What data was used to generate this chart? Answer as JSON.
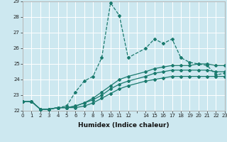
{
  "xlabel": "Humidex (Indice chaleur)",
  "bg_color": "#cde8f0",
  "grid_color": "#ffffff",
  "line_color": "#1a7a6e",
  "xlim": [
    0,
    23
  ],
  "ylim": [
    22.0,
    29.0
  ],
  "yticks": [
    22,
    23,
    24,
    25,
    26,
    27,
    28,
    29
  ],
  "xtick_positions": [
    0,
    1,
    2,
    3,
    4,
    5,
    6,
    7,
    8,
    9,
    10,
    11,
    12,
    13,
    14,
    15,
    16,
    17,
    18,
    19,
    20,
    21,
    22,
    23
  ],
  "xtick_labels": [
    "0",
    "1",
    "2",
    "3",
    "4",
    "5",
    "6",
    "7",
    "8",
    "9",
    "10",
    "11",
    "12",
    "",
    "14",
    "15",
    "16",
    "17",
    "18",
    "19",
    "20",
    "21",
    "22",
    "23"
  ],
  "series": [
    {
      "x": [
        0,
        1,
        2,
        3,
        4,
        5,
        6,
        7,
        8,
        9,
        10,
        11,
        12,
        14,
        15,
        16,
        17,
        18,
        19,
        20,
        21,
        22,
        23
      ],
      "y": [
        22.6,
        22.6,
        22.1,
        22.1,
        22.2,
        22.3,
        23.2,
        23.9,
        24.2,
        25.4,
        28.9,
        28.1,
        25.4,
        26.0,
        26.6,
        26.3,
        26.6,
        25.4,
        25.1,
        25.0,
        24.9,
        24.3,
        24.4
      ],
      "linestyle": "--"
    },
    {
      "x": [
        0,
        1,
        2,
        3,
        4,
        5,
        6,
        7,
        8,
        9,
        10,
        11,
        12,
        14,
        15,
        16,
        17,
        18,
        19,
        20,
        21,
        22,
        23
      ],
      "y": [
        22.6,
        22.6,
        22.1,
        22.1,
        22.2,
        22.2,
        22.3,
        22.5,
        22.8,
        23.2,
        23.6,
        24.0,
        24.2,
        24.5,
        24.7,
        24.8,
        24.9,
        24.9,
        24.9,
        25.0,
        25.0,
        24.9,
        24.9
      ],
      "linestyle": "-"
    },
    {
      "x": [
        0,
        1,
        2,
        3,
        4,
        5,
        6,
        7,
        8,
        9,
        10,
        11,
        12,
        14,
        15,
        16,
        17,
        18,
        19,
        20,
        21,
        22,
        23
      ],
      "y": [
        22.6,
        22.6,
        22.1,
        22.1,
        22.2,
        22.2,
        22.3,
        22.5,
        22.7,
        23.0,
        23.4,
        23.7,
        23.9,
        24.2,
        24.4,
        24.5,
        24.6,
        24.6,
        24.6,
        24.6,
        24.6,
        24.5,
        24.5
      ],
      "linestyle": "-"
    },
    {
      "x": [
        0,
        1,
        2,
        3,
        4,
        5,
        6,
        7,
        8,
        9,
        10,
        11,
        12,
        14,
        15,
        16,
        17,
        18,
        19,
        20,
        21,
        22,
        23
      ],
      "y": [
        22.6,
        22.6,
        22.1,
        22.1,
        22.2,
        22.2,
        22.2,
        22.3,
        22.5,
        22.8,
        23.1,
        23.4,
        23.6,
        23.9,
        24.0,
        24.1,
        24.2,
        24.2,
        24.2,
        24.2,
        24.2,
        24.2,
        24.2
      ],
      "linestyle": "-"
    }
  ],
  "marker": "D",
  "markersize": 2.0,
  "linewidth": 0.9,
  "tick_fontsize": 5.0,
  "xlabel_fontsize": 6.5
}
